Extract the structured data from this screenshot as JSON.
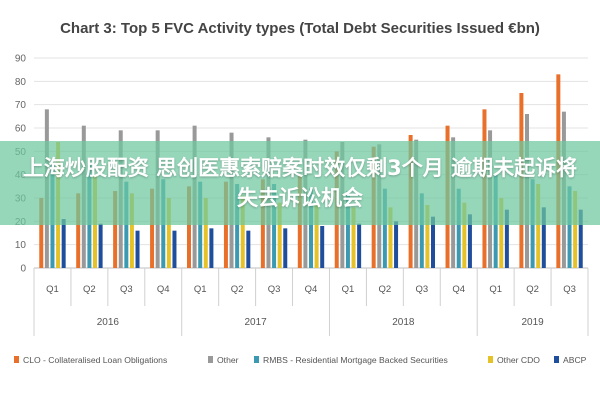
{
  "overlay_text": "上海炒股配资 思创医惠索赔案时效仅剩3个月 逾期未起诉将失去诉讼机会",
  "chart_data": {
    "type": "bar",
    "title": "Chart 3: Top 5 FVC Activity types (Total Debt Securities Issued €bn)",
    "xlabel": "",
    "ylabel": "",
    "ylim": [
      0,
      90
    ],
    "yticks": [
      0,
      10,
      20,
      30,
      40,
      50,
      60,
      70,
      80,
      90
    ],
    "grid": true,
    "legend_position": "bottom",
    "categories": [
      "Q1",
      "Q2",
      "Q3",
      "Q4",
      "Q1",
      "Q2",
      "Q3",
      "Q4",
      "Q1",
      "Q2",
      "Q3",
      "Q4",
      "Q1",
      "Q2",
      "Q3"
    ],
    "groups": [
      {
        "label": "2016",
        "count": 4
      },
      {
        "label": "2017",
        "count": 4
      },
      {
        "label": "2018",
        "count": 4
      },
      {
        "label": "2019",
        "count": 3
      }
    ],
    "series": [
      {
        "name": "CLO - Collateralised Loan Obligations",
        "color": "#e8702a",
        "values": [
          30,
          32,
          33,
          34,
          35,
          37,
          38,
          40,
          50,
          52,
          57,
          61,
          68,
          75,
          83
        ]
      },
      {
        "name": "Other",
        "color": "#999999",
        "values": [
          68,
          61,
          59,
          59,
          61,
          58,
          56,
          55,
          54,
          53,
          55,
          56,
          59,
          66,
          67
        ]
      },
      {
        "name": "RMBS - Residential Mortgage Backed Securities",
        "color": "#3b9ab2",
        "values": [
          45,
          44,
          37,
          38,
          37,
          36,
          36,
          34,
          33,
          34,
          32,
          34,
          40,
          38,
          35
        ]
      },
      {
        "name": "Other CDO",
        "color": "#e6c229",
        "values": [
          54,
          40,
          32,
          30,
          30,
          31,
          28,
          27,
          26,
          26,
          27,
          28,
          30,
          36,
          33
        ]
      },
      {
        "name": "ABCP",
        "color": "#1f4e9c",
        "values": [
          21,
          19,
          16,
          16,
          17,
          16,
          17,
          18,
          19,
          20,
          22,
          23,
          25,
          26,
          25
        ]
      }
    ]
  }
}
